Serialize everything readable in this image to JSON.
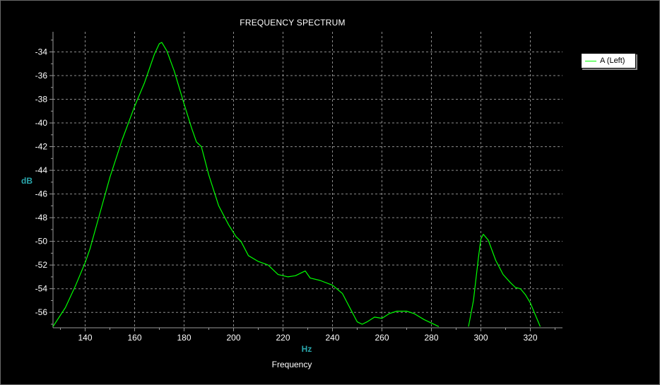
{
  "window": {
    "background": "#000000"
  },
  "chart_data": {
    "type": "line",
    "title": "FREQUENCY SPECTRUM",
    "xlabel": "Frequency",
    "xunit": "Hz",
    "ylabel": "dB",
    "xlim": [
      127,
      333
    ],
    "ylim": [
      -57.3,
      -32.3
    ],
    "xticks": [
      140,
      160,
      180,
      200,
      220,
      240,
      260,
      280,
      300,
      320
    ],
    "yticks": [
      -34,
      -36,
      -38,
      -40,
      -42,
      -44,
      -46,
      -48,
      -50,
      -52,
      -54,
      -56
    ],
    "grid": true,
    "legend_position": "top-right",
    "series": [
      {
        "name": "A (Left)",
        "color": "#00ff00",
        "segments": [
          [
            [
              127,
              -57.2
            ],
            [
              132,
              -55.6
            ],
            [
              136,
              -53.8
            ],
            [
              140,
              -51.8
            ],
            [
              142,
              -50.6
            ],
            [
              146,
              -47.6
            ],
            [
              150,
              -44.6
            ],
            [
              155,
              -41.4
            ],
            [
              160,
              -38.6
            ],
            [
              164,
              -36.6
            ],
            [
              166,
              -35.4
            ],
            [
              168,
              -34.2
            ],
            [
              170,
              -33.3
            ],
            [
              171,
              -33.2
            ],
            [
              173,
              -33.9
            ],
            [
              176,
              -35.6
            ],
            [
              180,
              -38.4
            ],
            [
              183,
              -40.4
            ],
            [
              185,
              -41.6
            ],
            [
              187,
              -42.0
            ],
            [
              190,
              -44.4
            ],
            [
              194,
              -47.0
            ],
            [
              198,
              -48.6
            ],
            [
              201,
              -49.6
            ],
            [
              203,
              -50.0
            ],
            [
              206,
              -51.2
            ],
            [
              210,
              -51.7
            ],
            [
              214,
              -52.0
            ],
            [
              218,
              -52.8
            ],
            [
              222,
              -53.0
            ],
            [
              225,
              -52.9
            ],
            [
              228,
              -52.6
            ],
            [
              229,
              -52.5
            ],
            [
              231,
              -53.1
            ],
            [
              235,
              -53.3
            ],
            [
              240,
              -53.7
            ],
            [
              244,
              -54.4
            ],
            [
              247,
              -55.6
            ],
            [
              250,
              -56.8
            ],
            [
              252,
              -57.0
            ],
            [
              254,
              -56.8
            ],
            [
              257,
              -56.4
            ],
            [
              260,
              -56.5
            ],
            [
              263,
              -56.1
            ],
            [
              266,
              -55.9
            ],
            [
              270,
              -55.9
            ],
            [
              273,
              -56.1
            ],
            [
              277,
              -56.6
            ],
            [
              280,
              -56.9
            ],
            [
              283,
              -57.2
            ]
          ],
          [
            [
              295,
              -57.2
            ],
            [
              297,
              -55.0
            ],
            [
              299,
              -51.4
            ],
            [
              300,
              -49.8
            ],
            [
              301,
              -49.4
            ],
            [
              303,
              -49.9
            ],
            [
              306,
              -51.6
            ],
            [
              309,
              -52.8
            ],
            [
              312,
              -53.5
            ],
            [
              314,
              -53.9
            ],
            [
              316,
              -54.0
            ],
            [
              318,
              -54.5
            ],
            [
              320,
              -55.2
            ],
            [
              322,
              -56.2
            ],
            [
              324,
              -57.2
            ]
          ]
        ]
      }
    ]
  }
}
